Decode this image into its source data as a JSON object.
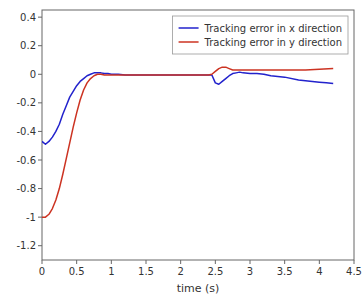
{
  "chart_data": {
    "type": "line",
    "xlabel": "time (s)",
    "xlim": [
      0,
      4.5
    ],
    "ylim": [
      -1.3,
      0.45
    ],
    "xticks": [
      0,
      0.5,
      1.0,
      1.5,
      2.0,
      2.5,
      3.0,
      3.5,
      4.0,
      4.5
    ],
    "yticks": [
      -1.2,
      -1.0,
      -0.8,
      -0.6,
      -0.4,
      -0.2,
      0,
      0.2,
      0.4
    ],
    "grid": false,
    "legend": "upper right",
    "series": [
      {
        "name": "Tracking error in x direction",
        "color": "#2222cc",
        "x": [
          0,
          0.05,
          0.1,
          0.15,
          0.2,
          0.25,
          0.3,
          0.35,
          0.4,
          0.45,
          0.5,
          0.55,
          0.6,
          0.65,
          0.7,
          0.75,
          0.8,
          0.85,
          0.9,
          0.95,
          1.0,
          1.1,
          1.2,
          1.3,
          1.4,
          1.5,
          1.6,
          1.7,
          1.8,
          1.9,
          2.0,
          2.1,
          2.2,
          2.3,
          2.4,
          2.45,
          2.5,
          2.55,
          2.6,
          2.65,
          2.7,
          2.75,
          2.8,
          2.85,
          2.9,
          3.0,
          3.1,
          3.2,
          3.3,
          3.5,
          3.7,
          3.9,
          4.0,
          4.1,
          4.2
        ],
        "values": [
          -0.47,
          -0.49,
          -0.47,
          -0.44,
          -0.4,
          -0.35,
          -0.28,
          -0.22,
          -0.16,
          -0.12,
          -0.08,
          -0.05,
          -0.03,
          -0.01,
          0.0,
          0.01,
          0.01,
          0.01,
          0.005,
          0.005,
          0.0,
          0.0,
          -0.005,
          -0.005,
          -0.005,
          -0.005,
          -0.005,
          -0.005,
          -0.005,
          -0.005,
          -0.005,
          -0.005,
          -0.005,
          -0.005,
          -0.005,
          -0.005,
          -0.06,
          -0.07,
          -0.05,
          -0.03,
          -0.01,
          0.005,
          0.01,
          0.015,
          0.01,
          0.005,
          0.005,
          0.0,
          -0.01,
          -0.02,
          -0.04,
          -0.05,
          -0.055,
          -0.06,
          -0.065
        ]
      },
      {
        "name": "Tracking error in y direction",
        "color": "#cc3322",
        "x": [
          0,
          0.05,
          0.1,
          0.15,
          0.2,
          0.25,
          0.3,
          0.35,
          0.4,
          0.45,
          0.5,
          0.55,
          0.6,
          0.65,
          0.7,
          0.75,
          0.8,
          0.85,
          0.9,
          0.95,
          1.0,
          1.1,
          1.2,
          1.3,
          1.4,
          1.5,
          1.6,
          1.7,
          1.8,
          1.9,
          2.0,
          2.1,
          2.2,
          2.3,
          2.4,
          2.45,
          2.5,
          2.55,
          2.6,
          2.65,
          2.7,
          2.75,
          2.8,
          2.9,
          3.0,
          3.1,
          3.2,
          3.4,
          3.6,
          3.8,
          4.0,
          4.2
        ],
        "values": [
          -1.0,
          -1.0,
          -0.98,
          -0.94,
          -0.88,
          -0.8,
          -0.7,
          -0.59,
          -0.48,
          -0.37,
          -0.27,
          -0.18,
          -0.11,
          -0.06,
          -0.03,
          -0.01,
          0.0,
          0.0,
          -0.005,
          -0.005,
          -0.005,
          -0.005,
          -0.005,
          -0.005,
          -0.005,
          -0.005,
          -0.005,
          -0.005,
          -0.005,
          -0.005,
          -0.005,
          -0.005,
          -0.005,
          -0.005,
          -0.005,
          0.0,
          0.02,
          0.04,
          0.05,
          0.05,
          0.04,
          0.03,
          0.03,
          0.03,
          0.03,
          0.03,
          0.03,
          0.03,
          0.03,
          0.03,
          0.035,
          0.04
        ]
      }
    ]
  }
}
